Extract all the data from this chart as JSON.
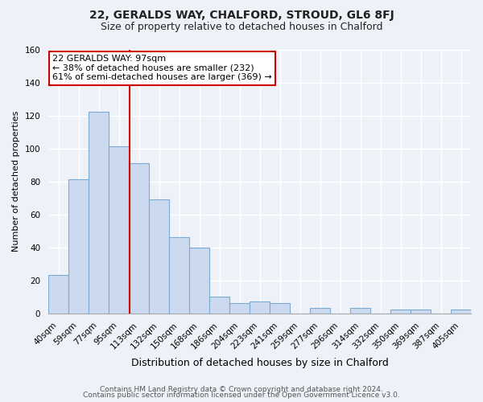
{
  "title": "22, GERALDS WAY, CHALFORD, STROUD, GL6 8FJ",
  "subtitle": "Size of property relative to detached houses in Chalford",
  "xlabel": "Distribution of detached houses by size in Chalford",
  "ylabel": "Number of detached properties",
  "bar_labels": [
    "40sqm",
    "59sqm",
    "77sqm",
    "95sqm",
    "113sqm",
    "132sqm",
    "150sqm",
    "168sqm",
    "186sqm",
    "204sqm",
    "223sqm",
    "241sqm",
    "259sqm",
    "277sqm",
    "296sqm",
    "314sqm",
    "332sqm",
    "350sqm",
    "369sqm",
    "387sqm",
    "405sqm"
  ],
  "bar_values": [
    23,
    81,
    122,
    101,
    91,
    69,
    46,
    40,
    10,
    6,
    7,
    6,
    0,
    3,
    0,
    3,
    0,
    2,
    2,
    0,
    2
  ],
  "bar_color": "#ccdaf0",
  "bar_edge_color": "#7aaad4",
  "annotation_title": "22 GERALDS WAY: 97sqm",
  "annotation_line1": "← 38% of detached houses are smaller (232)",
  "annotation_line2": "61% of semi-detached houses are larger (369) →",
  "annotation_box_edge_color": "#cc0000",
  "red_line_color": "#cc0000",
  "red_line_x": 3.55,
  "ylim": [
    0,
    160
  ],
  "yticks": [
    0,
    20,
    40,
    60,
    80,
    100,
    120,
    140,
    160
  ],
  "footer1": "Contains HM Land Registry data © Crown copyright and database right 2024.",
  "footer2": "Contains public sector information licensed under the Open Government Licence v3.0.",
  "bg_color": "#eef2f8",
  "plot_bg_color": "#eef2f8",
  "grid_color": "#ffffff",
  "title_fontsize": 10,
  "subtitle_fontsize": 9,
  "ylabel_fontsize": 8,
  "xlabel_fontsize": 9,
  "tick_fontsize": 7.5,
  "annotation_fontsize": 8,
  "footer_fontsize": 6.5
}
